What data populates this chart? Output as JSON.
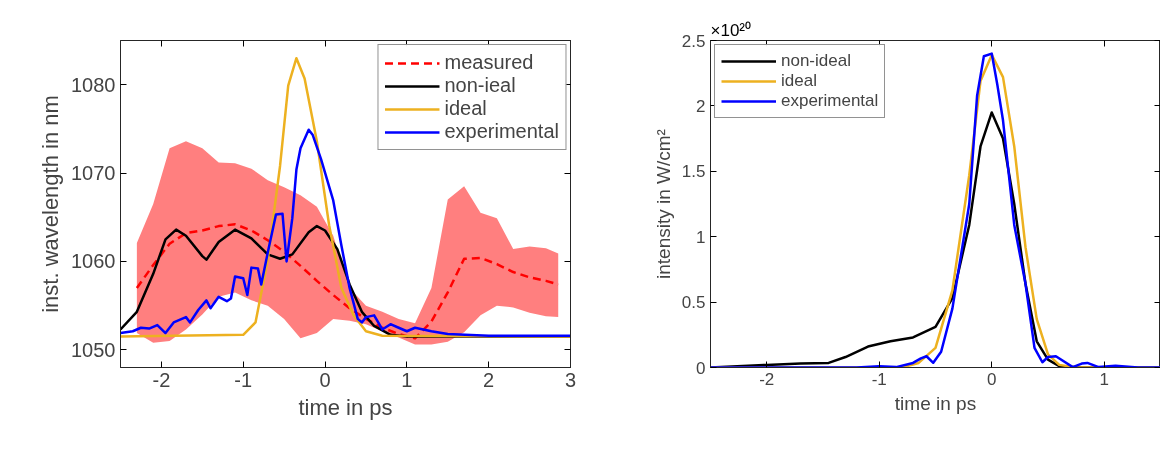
{
  "chart_data": [
    {
      "type": "line",
      "xlabel": "time in ps",
      "ylabel": "inst. wavelength in nm",
      "xlim": [
        -2.5,
        3
      ],
      "ylim": [
        1048,
        1085
      ],
      "xticks": [
        -2,
        -1,
        0,
        1,
        2,
        3
      ],
      "yticks": [
        1050,
        1060,
        1070,
        1080
      ],
      "grid": false,
      "legend": "top right",
      "series": [
        {
          "name": "measured",
          "color": "#ff0000",
          "line_style": "dashed",
          "x": [
            -2.3,
            -2.1,
            -1.9,
            -1.7,
            -1.5,
            -1.3,
            -1.1,
            -0.9,
            -0.7,
            -0.5,
            -0.3,
            -0.1,
            0.1,
            0.3,
            0.5,
            0.7,
            0.9,
            1.1,
            1.3,
            1.5,
            1.7,
            1.9,
            2.1,
            2.3,
            2.5,
            2.7,
            2.85
          ],
          "values": [
            1057.0,
            1059.6,
            1062.0,
            1063.2,
            1063.5,
            1064.0,
            1064.2,
            1063.5,
            1062.4,
            1061.1,
            1059.5,
            1057.8,
            1056.2,
            1054.7,
            1053.5,
            1052.5,
            1051.8,
            1051.3,
            1053.2,
            1056.5,
            1060.3,
            1060.4,
            1059.7,
            1058.8,
            1058.2,
            1057.8,
            1057.4
          ],
          "upper": [
            1062.1,
            1066.5,
            1072.8,
            1073.6,
            1072.8,
            1071.2,
            1071.1,
            1070.5,
            1069.2,
            1068.4,
            1067.5,
            1066.2,
            1062.9,
            1057.0,
            1055.0,
            1054.3,
            1053.5,
            1053.0,
            1057.0,
            1067.0,
            1068.5,
            1065.5,
            1064.9,
            1061.4,
            1061.7,
            1061.5,
            1060.9
          ],
          "lower": [
            1051.9,
            1050.8,
            1051.0,
            1052.3,
            1054.0,
            1056.0,
            1056.5,
            1055.6,
            1055.0,
            1053.5,
            1051.3,
            1051.9,
            1053.5,
            1053.3,
            1052.9,
            1052.1,
            1051.4,
            1050.6,
            1050.6,
            1050.9,
            1052.0,
            1053.9,
            1055.0,
            1054.8,
            1054.2,
            1053.8,
            1053.7
          ]
        },
        {
          "name": "non-ieal",
          "color": "#000000",
          "line_style": "solid",
          "x": [
            -2.5,
            -2.3,
            -2.1,
            -1.95,
            -1.82,
            -1.7,
            -1.5,
            -1.45,
            -1.3,
            -1.1,
            -0.9,
            -0.7,
            -0.55,
            -0.4,
            -0.2,
            -0.1,
            0.0,
            0.15,
            0.3,
            0.45,
            0.6,
            0.8,
            1.0,
            3.0
          ],
          "values": [
            1052.3,
            1054.3,
            1058.6,
            1062.5,
            1063.6,
            1062.9,
            1060.6,
            1060.2,
            1062.2,
            1063.6,
            1062.6,
            1060.8,
            1060.3,
            1060.8,
            1063.3,
            1064.0,
            1063.5,
            1061.4,
            1057.4,
            1054.3,
            1052.7,
            1051.7,
            1051.5,
            1051.5
          ]
        },
        {
          "name": "ideal",
          "color": "#edb120",
          "line_style": "solid",
          "x": [
            -2.5,
            -1.0,
            -0.85,
            -0.7,
            -0.55,
            -0.45,
            -0.35,
            -0.25,
            -0.1,
            0.05,
            0.2,
            0.35,
            0.5,
            0.7,
            3.0
          ],
          "values": [
            1051.5,
            1051.7,
            1053.1,
            1060.2,
            1070.8,
            1079.9,
            1083.0,
            1080.7,
            1073.6,
            1064.1,
            1057.0,
            1053.9,
            1052.1,
            1051.6,
            1051.5
          ]
        },
        {
          "name": "experimental",
          "color": "#0000ff",
          "line_style": "solid",
          "x": [
            -2.5,
            -2.35,
            -2.25,
            -2.15,
            -2.05,
            -1.95,
            -1.85,
            -1.7,
            -1.65,
            -1.55,
            -1.45,
            -1.4,
            -1.3,
            -1.2,
            -1.15,
            -1.1,
            -1.0,
            -0.95,
            -0.9,
            -0.82,
            -0.78,
            -0.7,
            -0.6,
            -0.52,
            -0.47,
            -0.4,
            -0.35,
            -0.3,
            -0.2,
            -0.15,
            -0.05,
            0.1,
            0.2,
            0.3,
            0.4,
            0.45,
            0.5,
            0.6,
            0.7,
            0.8,
            0.9,
            1.0,
            1.1,
            1.3,
            1.5,
            2.0,
            3.0
          ],
          "values": [
            1051.9,
            1052.1,
            1052.5,
            1052.4,
            1052.8,
            1051.9,
            1053.1,
            1053.7,
            1053.1,
            1054.5,
            1055.6,
            1054.7,
            1056.0,
            1055.5,
            1055.8,
            1058.3,
            1058.1,
            1056.2,
            1059.3,
            1059.2,
            1057.4,
            1061.0,
            1065.3,
            1065.4,
            1060.0,
            1064.9,
            1070.4,
            1072.8,
            1074.9,
            1074.3,
            1071.6,
            1066.9,
            1061.8,
            1057.0,
            1053.5,
            1053.1,
            1053.7,
            1053.9,
            1052.3,
            1052.9,
            1052.5,
            1052.1,
            1052.5,
            1052.1,
            1051.8,
            1051.6,
            1051.6
          ]
        }
      ]
    },
    {
      "type": "line",
      "xlabel": "time in ps",
      "ylabel": "intensity in W/cm²",
      "annotations": [
        "×10²⁰"
      ],
      "xlim": [
        -2.5,
        1.5
      ],
      "ylim": [
        0,
        2.5
      ],
      "xticks": [
        -2,
        -1,
        0,
        1
      ],
      "yticks": [
        0,
        0.5,
        1,
        1.5,
        2,
        2.5
      ],
      "grid": false,
      "legend": "top left",
      "series": [
        {
          "name": "non-ideal",
          "color": "#000000",
          "x": [
            -2.5,
            -2.0,
            -1.7,
            -1.45,
            -1.3,
            -1.1,
            -0.9,
            -0.7,
            -0.5,
            -0.35,
            -0.2,
            -0.1,
            0.0,
            0.1,
            0.2,
            0.3,
            0.4,
            0.5,
            0.6,
            0.8,
            1.5
          ],
          "values": [
            0,
            0.02,
            0.03,
            0.035,
            0.08,
            0.16,
            0.2,
            0.23,
            0.31,
            0.53,
            1.09,
            1.69,
            1.95,
            1.75,
            1.25,
            0.64,
            0.2,
            0.06,
            0.01,
            0,
            0
          ]
        },
        {
          "name": "ideal",
          "color": "#edb120",
          "x": [
            -2.5,
            -0.8,
            -0.65,
            -0.5,
            -0.35,
            -0.2,
            -0.1,
            0.0,
            0.1,
            0.2,
            0.3,
            0.4,
            0.5,
            0.6,
            0.75,
            1.5
          ],
          "values": [
            0,
            0,
            0.035,
            0.15,
            0.59,
            1.47,
            2.19,
            2.39,
            2.22,
            1.69,
            0.92,
            0.37,
            0.1,
            0.02,
            0,
            0
          ]
        },
        {
          "name": "experimental",
          "color": "#0000ff",
          "x": [
            -2.5,
            -1.2,
            -1.0,
            -0.85,
            -0.7,
            -0.63,
            -0.58,
            -0.52,
            -0.45,
            -0.35,
            -0.2,
            -0.13,
            -0.07,
            0.0,
            0.05,
            0.1,
            0.2,
            0.3,
            0.38,
            0.45,
            0.5,
            0.57,
            0.72,
            0.8,
            0.85,
            0.95,
            1.1,
            1.3,
            1.5
          ],
          "values": [
            0,
            0,
            0.01,
            0.003,
            0.035,
            0.07,
            0.086,
            0.036,
            0.12,
            0.45,
            1.25,
            2.08,
            2.38,
            2.4,
            2.16,
            1.89,
            1.09,
            0.64,
            0.15,
            0.04,
            0.08,
            0.086,
            0.003,
            0.03,
            0.035,
            0.003,
            0.014,
            0,
            0
          ]
        }
      ]
    }
  ]
}
